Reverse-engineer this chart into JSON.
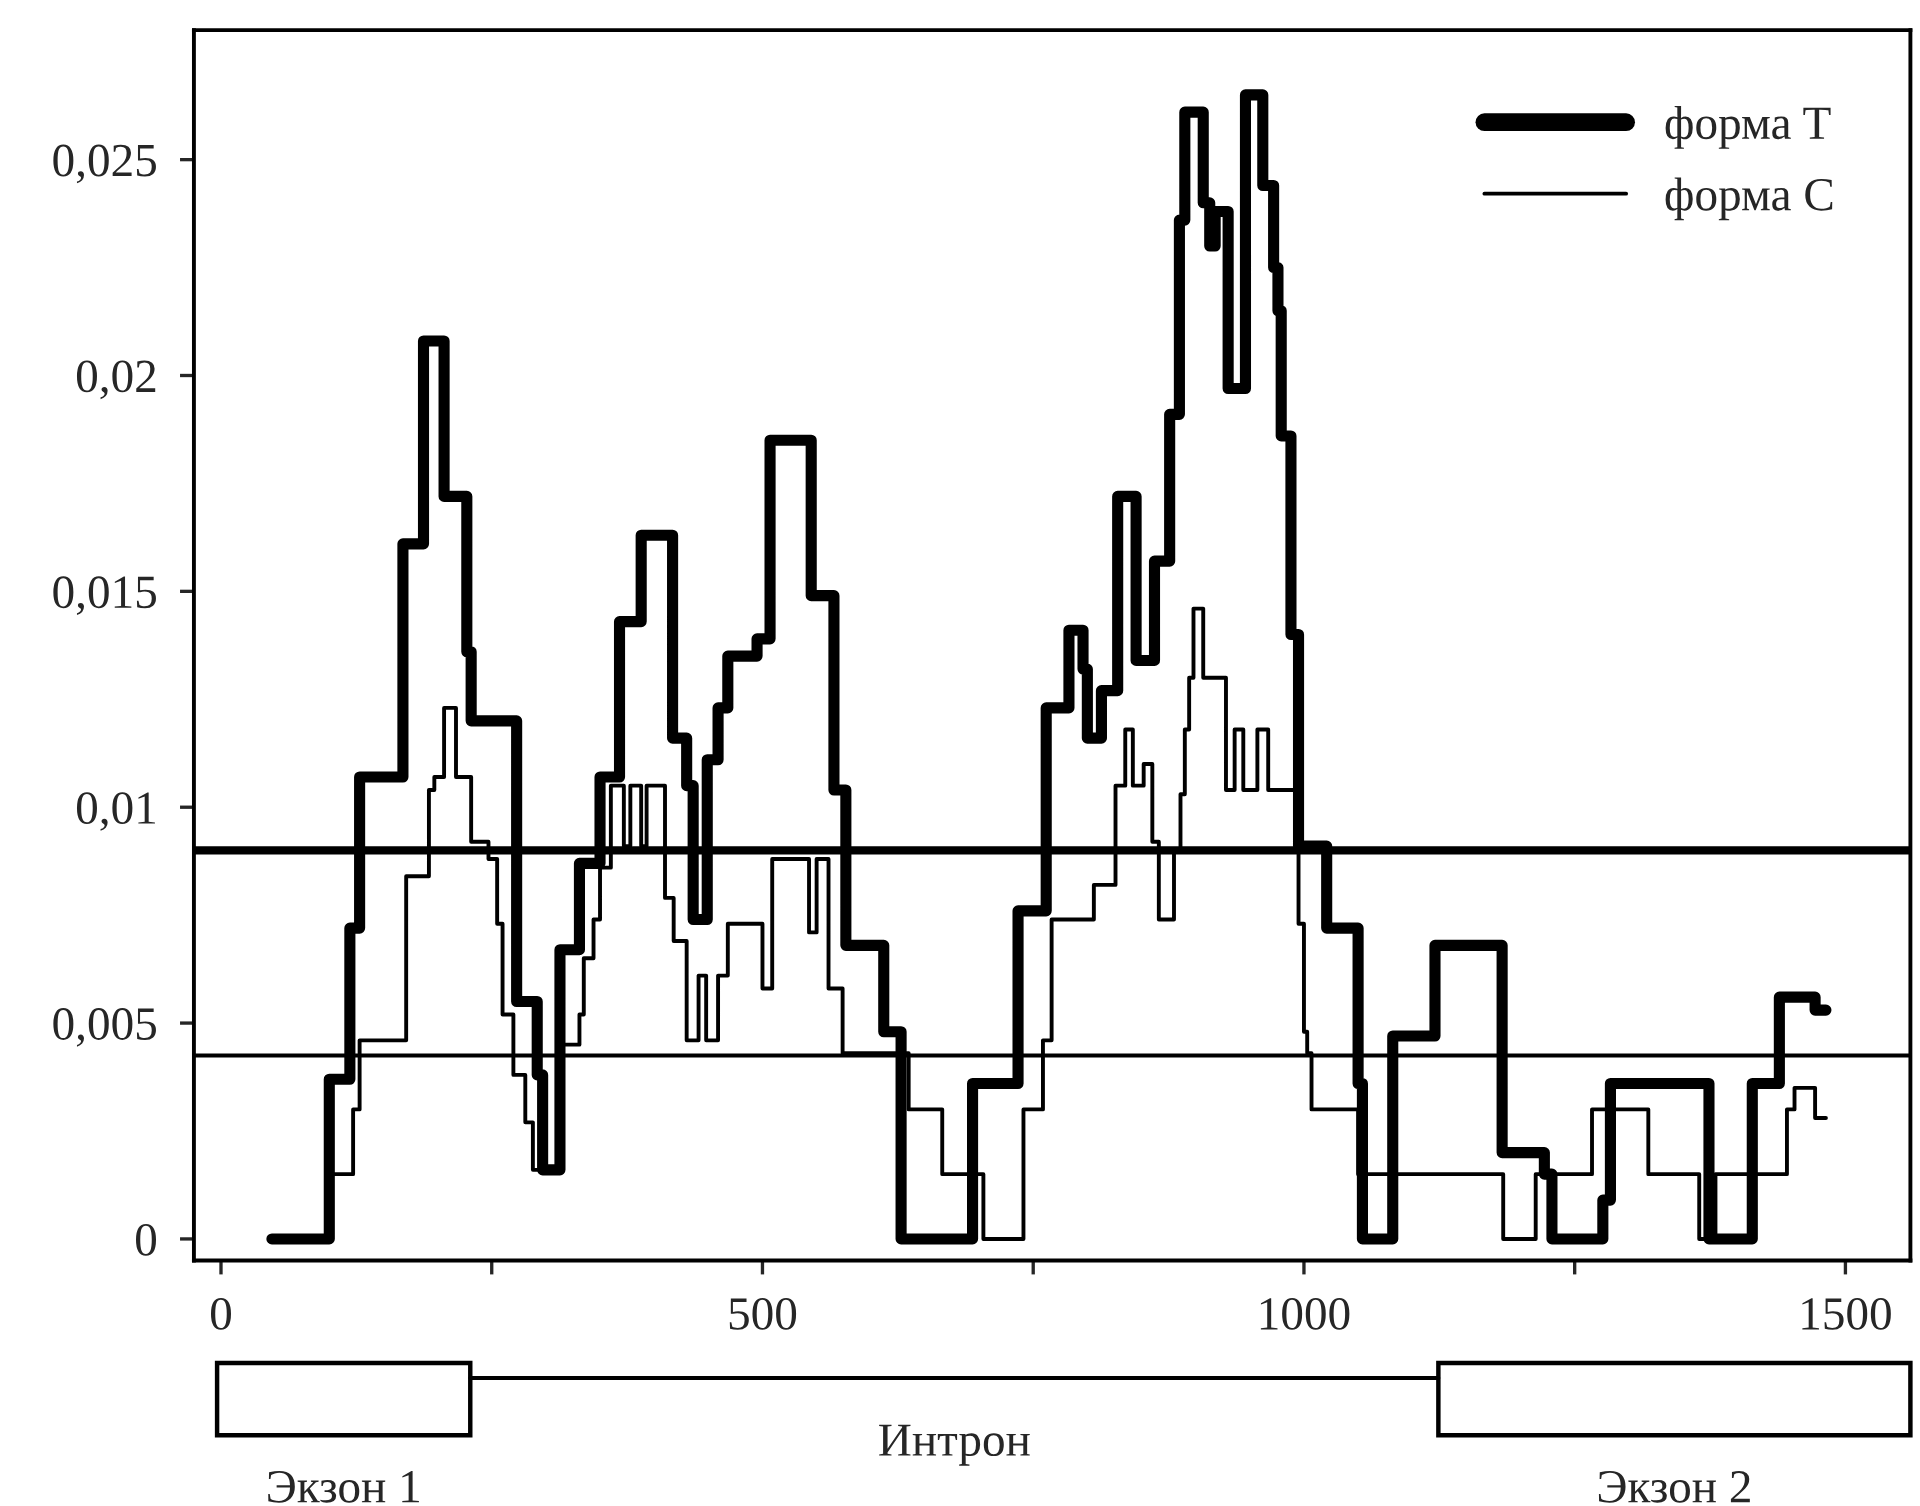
{
  "chart_data": {
    "type": "step",
    "series": [
      {
        "name": "форма T",
        "color": "#000000",
        "x": [
          47,
          100,
          119,
          128,
          168,
          187,
          206,
          227,
          231,
          273,
          292,
          297,
          313,
          331,
          350,
          368,
          388,
          417,
          430,
          436,
          449,
          459,
          468,
          495,
          507,
          545,
          566,
          577,
          612,
          628,
          694,
          736,
          762,
          783,
          796,
          800,
          813,
          828,
          845,
          862,
          876,
          885,
          890,
          907,
          913,
          918,
          930,
          946,
          962,
          972,
          976,
          979,
          988,
          995,
          1021,
          1050,
          1054,
          1082,
          1121,
          1183,
          1222,
          1229,
          1276,
          1283,
          1374,
          1414,
          1439,
          1472,
          1482
        ],
        "values": [
          0,
          0.0037,
          0.0072,
          0.0107,
          0.0161,
          0.0208,
          0.0172,
          0.0136,
          0.012,
          0.0055,
          0.0038,
          0.0016,
          0.0067,
          0.0087,
          0.0107,
          0.0143,
          0.0163,
          0.0116,
          0.0105,
          0.0074,
          0.0111,
          0.0123,
          0.0135,
          0.0139,
          0.0185,
          0.0149,
          0.0104,
          0.0068,
          0.0048,
          0,
          0.0036,
          0.0076,
          0.0123,
          0.0141,
          0.0132,
          0.0116,
          0.0127,
          0.0172,
          0.0134,
          0.0157,
          0.0191,
          0.0236,
          0.0261,
          0.024,
          0.023,
          0.0238,
          0.0197,
          0.0265,
          0.0244,
          0.0225,
          0.0215,
          0.0186,
          0.014,
          0.0091,
          0.0072,
          0.0036,
          0,
          0.0047,
          0.0068,
          0.002,
          0.0015,
          0,
          0.0009,
          0.0036,
          0,
          0.0036,
          0.0056,
          0.0053,
          0.0053
        ]
      },
      {
        "name": "форма C",
        "color": "#000000",
        "x": [
          103,
          122,
          128,
          171,
          192,
          197,
          206,
          217,
          231,
          247,
          255,
          260,
          270,
          281,
          288,
          313,
          331,
          335,
          344,
          350,
          360,
          372,
          378,
          388,
          393,
          410,
          418,
          430,
          441,
          448,
          459,
          468,
          500,
          509,
          543,
          550,
          561,
          574,
          635,
          666,
          704,
          741,
          759,
          767,
          806,
          826,
          835,
          842,
          852,
          860,
          866,
          880,
          886,
          890,
          894,
          898,
          907,
          928,
          936,
          944,
          957,
          967,
          995,
          1000,
          1003,
          1007,
          1050,
          1184,
          1214,
          1266,
          1318,
          1365,
          1380,
          1446,
          1453,
          1472,
          1482
        ],
        "values": [
          0.0015,
          0.003,
          0.0046,
          0.0084,
          0.0104,
          0.0107,
          0.0123,
          0.0107,
          0.0092,
          0.0088,
          0.0073,
          0.0052,
          0.0038,
          0.0027,
          0.0016,
          0.0045,
          0.0052,
          0.0065,
          0.0074,
          0.0086,
          0.0105,
          0.0091,
          0.0105,
          0.0091,
          0.0105,
          0.0079,
          0.0069,
          0.0046,
          0.0061,
          0.0046,
          0.0061,
          0.0073,
          0.0058,
          0.0088,
          0.0071,
          0.0088,
          0.0058,
          0.0043,
          0.003,
          0.0015,
          0,
          0.003,
          0.0046,
          0.0074,
          0.0082,
          0.0105,
          0.0118,
          0.0105,
          0.011,
          0.0092,
          0.0074,
          0.009,
          0.0103,
          0.0118,
          0.013,
          0.0146,
          0.013,
          0.0104,
          0.0118,
          0.0104,
          0.0118,
          0.0104,
          0.0073,
          0.0048,
          0.0043,
          0.003,
          0.0015,
          0,
          0.0015,
          0.003,
          0.0015,
          0,
          0.0015,
          0.003,
          0.0035,
          0.0028,
          0.0028
        ]
      }
    ],
    "xlim": [
      -25,
      1560
    ],
    "ylim": [
      -0.0005,
      0.028
    ],
    "xticks": [
      0,
      {
        "value": 250,
        "label": null
      },
      500,
      {
        "value": 750,
        "label": null
      },
      1000,
      {
        "value": 1250,
        "label": null
      },
      1500
    ],
    "yticks": [
      0,
      {
        "value": 0.005,
        "label": "0,005"
      },
      {
        "value": 0.01,
        "label": "0,01"
      },
      {
        "value": 0.015,
        "label": "0,015"
      },
      {
        "value": 0.02,
        "label": "0,02"
      },
      {
        "value": 0.025,
        "label": "0,025"
      }
    ],
    "ref_lines": [
      {
        "axis": "y",
        "value": 0.009,
        "color": "#000000"
      },
      {
        "axis": "y",
        "value": 0.00425,
        "color": "#000000"
      }
    ],
    "annotations": [
      "Экзон 1",
      "Интрон",
      "Экзон 2"
    ],
    "grid": false,
    "legend": "top right",
    "marker": "none",
    "line_style": "solid"
  }
}
